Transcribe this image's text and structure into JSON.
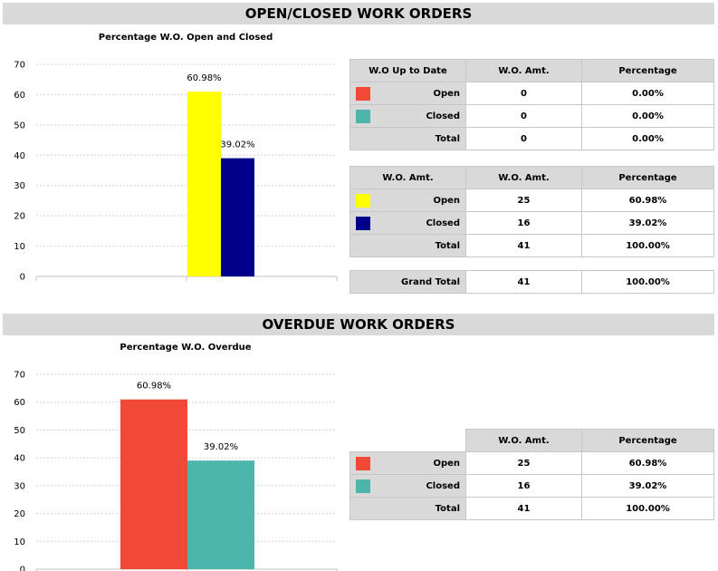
{
  "section1": {
    "title": "OPEN/CLOSED WORK ORDERS"
  },
  "section2": {
    "title": "OVERDUE WORK ORDERS"
  },
  "colors": {
    "yellow": "#ffff00",
    "navy": "#00008b",
    "red": "#f04a36",
    "teal": "#4db6ac",
    "header_gray": "#d9d9d9"
  },
  "table_uptodate": {
    "headers": [
      "W.O Up to Date",
      "W.O. Amt.",
      "Percentage"
    ],
    "rows": [
      {
        "label": "Open",
        "amount": "0",
        "percentage": "0.00%",
        "color": "#f04a36"
      },
      {
        "label": "Closed",
        "amount": "0",
        "percentage": "0.00%",
        "color": "#4db6ac"
      },
      {
        "label": "Total",
        "amount": "0",
        "percentage": "0.00%"
      }
    ]
  },
  "table_amt": {
    "headers": [
      "W.O. Amt.",
      "W.O. Amt.",
      "Percentage"
    ],
    "rows": [
      {
        "label": "Open",
        "amount": "25",
        "percentage": "60.98%",
        "color": "#ffff00"
      },
      {
        "label": "Closed",
        "amount": "16",
        "percentage": "39.02%",
        "color": "#00008b"
      },
      {
        "label": "Total",
        "amount": "41",
        "percentage": "100.00%"
      }
    ]
  },
  "table_grand": {
    "label": "Grand Total",
    "amount": "41",
    "percentage": "100.00%"
  },
  "table_overdue": {
    "headers": [
      "W.O. Amt.",
      "Percentage"
    ],
    "rows": [
      {
        "label": "Open",
        "amount": "25",
        "percentage": "60.98%",
        "color": "#f04a36"
      },
      {
        "label": "Closed",
        "amount": "16",
        "percentage": "39.02%",
        "color": "#4db6ac"
      },
      {
        "label": "Total",
        "amount": "41",
        "percentage": "100.00%"
      }
    ]
  },
  "chart_data": [
    {
      "type": "bar",
      "title": "Percentage W.O. Open and Closed",
      "xlabel": "",
      "ylabel": "",
      "ylim": [
        0,
        70
      ],
      "yticks": [
        0,
        10,
        20,
        30,
        40,
        50,
        60,
        70
      ],
      "grid": true,
      "series": [
        {
          "values": [
            60.98
          ],
          "label": "60.98%",
          "color": "#ffff00"
        },
        {
          "values": [
            39.02
          ],
          "label": "39.02%",
          "color": "#00008b"
        }
      ]
    },
    {
      "type": "bar",
      "title": "Percentage W.O. Overdue",
      "xlabel": "",
      "ylabel": "",
      "ylim": [
        0,
        70
      ],
      "yticks": [
        0,
        10,
        20,
        30,
        40,
        50,
        60,
        70
      ],
      "grid": true,
      "series": [
        {
          "values": [
            60.98
          ],
          "label": "60.98%",
          "color": "#f04a36"
        },
        {
          "values": [
            39.02
          ],
          "label": "39.02%",
          "color": "#4db6ac"
        }
      ]
    }
  ]
}
